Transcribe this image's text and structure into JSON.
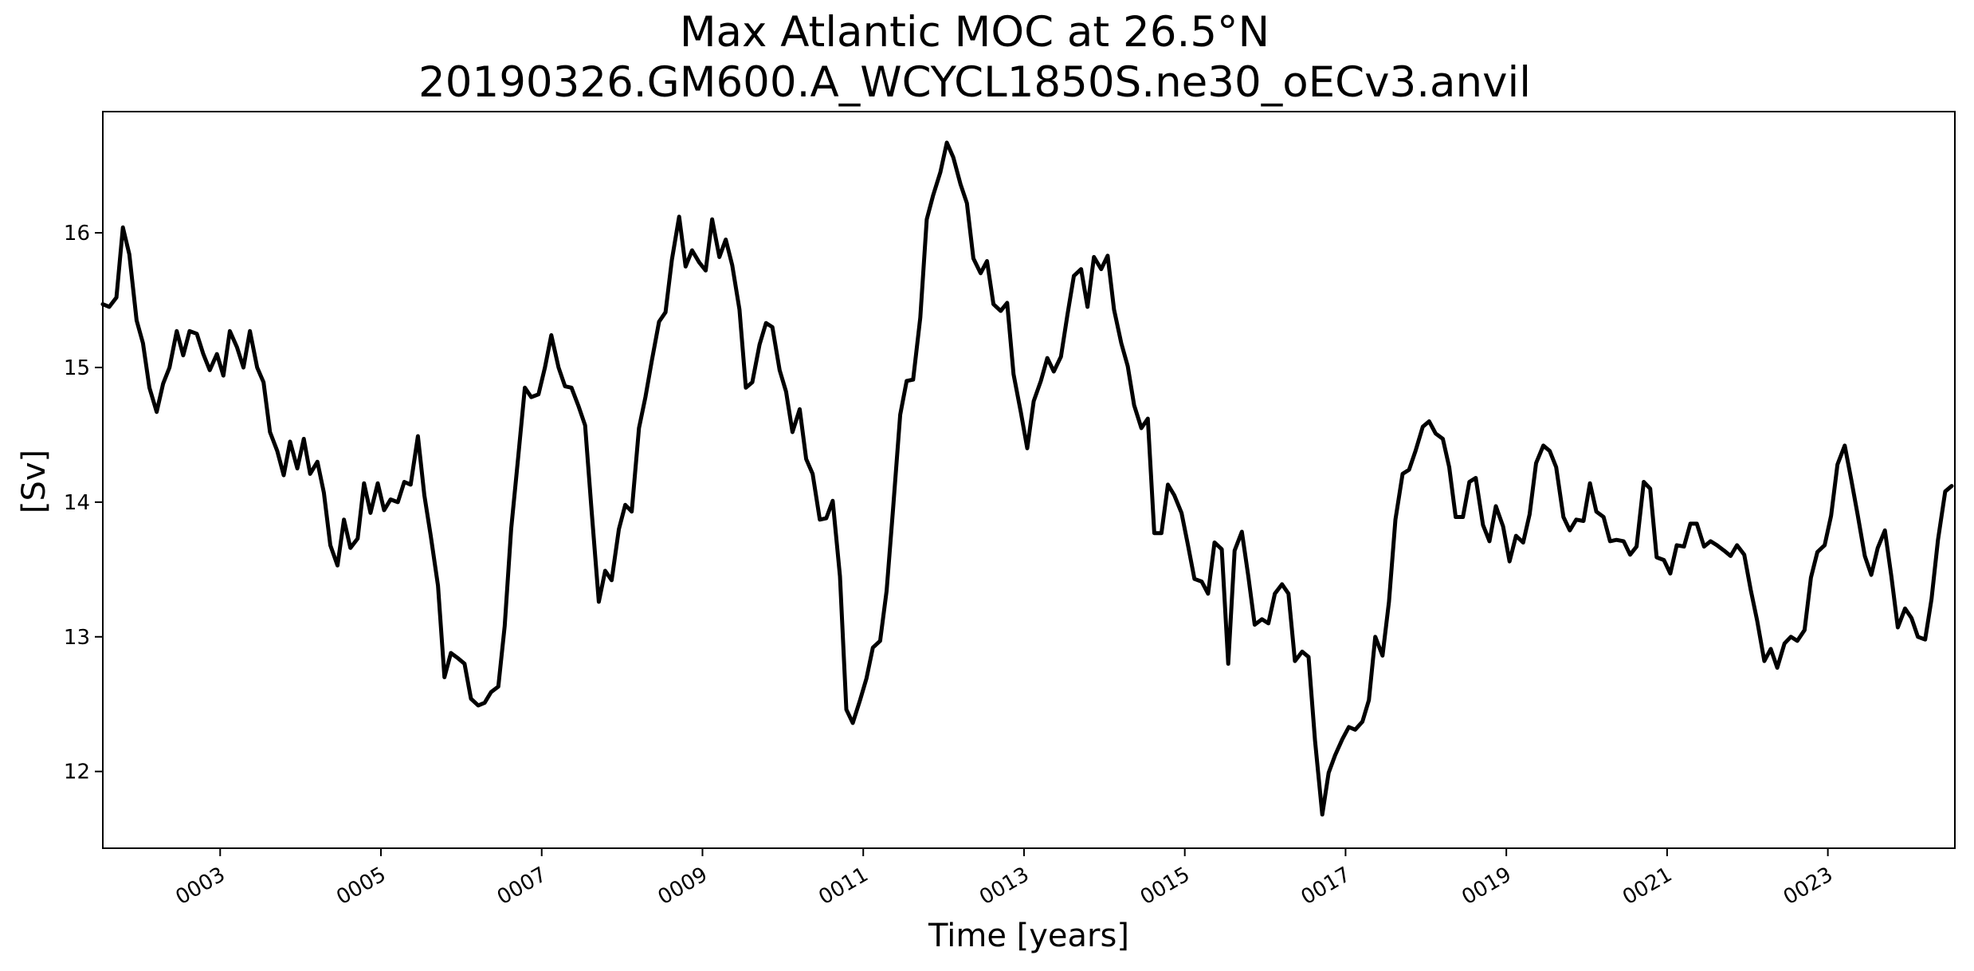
{
  "chart_data": {
    "type": "line",
    "title": "Max Atlantic MOC at 26.5°N",
    "subtitle": "20190326.GM600.A_WCYCL1850S.ne30_oECv3.anvil",
    "xlabel": "Time [years]",
    "ylabel": "[Sv]",
    "xlim": [
      1.54,
      24.58
    ],
    "ylim": [
      11.43,
      16.9
    ],
    "x_ticks": [
      {
        "value": 3,
        "label": "0003"
      },
      {
        "value": 5,
        "label": "0005"
      },
      {
        "value": 7,
        "label": "0007"
      },
      {
        "value": 9,
        "label": "0009"
      },
      {
        "value": 11,
        "label": "0011"
      },
      {
        "value": 13,
        "label": "0013"
      },
      {
        "value": 15,
        "label": "0015"
      },
      {
        "value": 17,
        "label": "0017"
      },
      {
        "value": 19,
        "label": "0019"
      },
      {
        "value": 21,
        "label": "0021"
      },
      {
        "value": 23,
        "label": "0023"
      }
    ],
    "y_ticks": [
      {
        "value": 12,
        "label": "12"
      },
      {
        "value": 13,
        "label": "13"
      },
      {
        "value": 14,
        "label": "14"
      },
      {
        "value": 15,
        "label": "15"
      },
      {
        "value": 16,
        "label": "16"
      }
    ],
    "grid": false,
    "line_color": "#000000",
    "series": [
      {
        "x": [
          1.54,
          1.62,
          1.71,
          1.79,
          1.87,
          1.96,
          2.04,
          2.12,
          2.21,
          2.29,
          2.37,
          2.46,
          2.54,
          2.62,
          2.71,
          2.79,
          2.87,
          2.96,
          3.04,
          3.12,
          3.21,
          3.29,
          3.37,
          3.46,
          3.54,
          3.62,
          3.71,
          3.79,
          3.87,
          3.96,
          4.04,
          4.12,
          4.21,
          4.29,
          4.37,
          4.46,
          4.54,
          4.62,
          4.71,
          4.79,
          4.87,
          4.96,
          5.04,
          5.12,
          5.21,
          5.29,
          5.37,
          5.46,
          5.54,
          5.62,
          5.71,
          5.79,
          5.87,
          5.96,
          6.04,
          6.12,
          6.21,
          6.29,
          6.37,
          6.46,
          6.54,
          6.62,
          6.71,
          6.79,
          6.87,
          6.96,
          7.04,
          7.12,
          7.21,
          7.29,
          7.37,
          7.46,
          7.54,
          7.62,
          7.71,
          7.79,
          7.87,
          7.96,
          8.04,
          8.12,
          8.21,
          8.29,
          8.37,
          8.46,
          8.54,
          8.62,
          8.71,
          8.79,
          8.87,
          8.96,
          9.04,
          9.12,
          9.21,
          9.29,
          9.37,
          9.46,
          9.54,
          9.62,
          9.71,
          9.79,
          9.87,
          9.96,
          10.04,
          10.12,
          10.21,
          10.29,
          10.37,
          10.46,
          10.54,
          10.62,
          10.71,
          10.79,
          10.87,
          10.96,
          11.04,
          11.12,
          11.21,
          11.29,
          11.37,
          11.46,
          11.54,
          11.62,
          11.71,
          11.79,
          11.87,
          11.96,
          12.04,
          12.12,
          12.21,
          12.29,
          12.37,
          12.46,
          12.54,
          12.62,
          12.71,
          12.79,
          12.87,
          12.96,
          13.04,
          13.12,
          13.21,
          13.29,
          13.37,
          13.46,
          13.54,
          13.62,
          13.71,
          13.79,
          13.87,
          13.96,
          14.04,
          14.12,
          14.21,
          14.29,
          14.37,
          14.46,
          14.54,
          14.62,
          14.71,
          14.79,
          14.87,
          14.96,
          15.04,
          15.12,
          15.21,
          15.29,
          15.37,
          15.46,
          15.54,
          15.62,
          15.71,
          15.79,
          15.87,
          15.96,
          16.04,
          16.12,
          16.21,
          16.29,
          16.37,
          16.46,
          16.54,
          16.62,
          16.71,
          16.79,
          16.87,
          16.96,
          17.04,
          17.12,
          17.21,
          17.29,
          17.37,
          17.46,
          17.54,
          17.62,
          17.71,
          17.79,
          17.87,
          17.96,
          18.04,
          18.12,
          18.21,
          18.29,
          18.37,
          18.46,
          18.54,
          18.62,
          18.71,
          18.79,
          18.87,
          18.96,
          19.04,
          19.12,
          19.21,
          19.29,
          19.37,
          19.46,
          19.54,
          19.62,
          19.71,
          19.79,
          19.87,
          19.96,
          20.04,
          20.12,
          20.21,
          20.29,
          20.37,
          20.46,
          20.54,
          20.62,
          20.71,
          20.79,
          20.87,
          20.96,
          21.04,
          21.12,
          21.21,
          21.29,
          21.37,
          21.46,
          21.54,
          21.62,
          21.71,
          21.79,
          21.87,
          21.96,
          22.04,
          22.12,
          22.21,
          22.29,
          22.37,
          22.46,
          22.54,
          22.62,
          22.71,
          22.79,
          22.87,
          22.96,
          23.04,
          23.12,
          23.21,
          23.29,
          23.37,
          23.46,
          23.54,
          23.62,
          23.71,
          23.79,
          23.87,
          23.96,
          24.04,
          24.12,
          24.21,
          24.29,
          24.37,
          24.46,
          24.54
        ],
        "y": [
          15.47,
          15.45,
          15.52,
          16.04,
          15.84,
          15.35,
          15.18,
          14.85,
          14.67,
          14.88,
          15.0,
          15.27,
          15.09,
          15.27,
          15.25,
          15.1,
          14.98,
          15.1,
          14.94,
          15.27,
          15.15,
          15.0,
          15.27,
          15.0,
          14.89,
          14.52,
          14.38,
          14.2,
          14.45,
          14.25,
          14.47,
          14.21,
          14.3,
          14.07,
          13.68,
          13.53,
          13.87,
          13.66,
          13.73,
          14.14,
          13.92,
          14.14,
          13.94,
          14.02,
          14.0,
          14.15,
          14.13,
          14.49,
          14.05,
          13.75,
          13.38,
          12.7,
          12.88,
          12.84,
          12.8,
          12.54,
          12.49,
          12.51,
          12.59,
          12.63,
          13.08,
          13.8,
          14.35,
          14.85,
          14.78,
          14.8,
          15.0,
          15.24,
          15.0,
          14.86,
          14.85,
          14.71,
          14.57,
          13.94,
          13.26,
          13.49,
          13.42,
          13.8,
          13.98,
          13.93,
          14.55,
          14.78,
          15.05,
          15.34,
          15.41,
          15.8,
          16.12,
          15.75,
          15.87,
          15.78,
          15.72,
          16.1,
          15.82,
          15.95,
          15.76,
          15.43,
          14.85,
          14.89,
          15.17,
          15.33,
          15.3,
          14.98,
          14.82,
          14.52,
          14.69,
          14.32,
          14.21,
          13.87,
          13.88,
          14.01,
          13.45,
          12.46,
          12.36,
          12.53,
          12.69,
          12.92,
          12.97,
          13.34,
          13.94,
          14.65,
          14.9,
          14.91,
          15.37,
          16.1,
          16.28,
          16.45,
          16.67,
          16.56,
          16.36,
          16.22,
          15.81,
          15.7,
          15.79,
          15.47,
          15.42,
          15.48,
          14.95,
          14.67,
          14.4,
          14.75,
          14.9,
          15.07,
          14.97,
          15.08,
          15.39,
          15.68,
          15.73,
          15.45,
          15.82,
          15.73,
          15.83,
          15.43,
          15.18,
          15.01,
          14.72,
          14.55,
          14.62,
          13.77,
          13.77,
          14.13,
          14.05,
          13.92,
          13.68,
          13.43,
          13.41,
          13.32,
          13.7,
          13.65,
          12.8,
          13.64,
          13.78,
          13.45,
          13.09,
          13.13,
          13.1,
          13.32,
          13.39,
          13.32,
          12.82,
          12.89,
          12.85,
          12.23,
          11.68,
          11.99,
          12.12,
          12.24,
          12.33,
          12.31,
          12.37,
          12.53,
          13.0,
          12.86,
          13.26,
          13.87,
          14.21,
          14.24,
          14.38,
          14.56,
          14.6,
          14.51,
          14.47,
          14.26,
          13.89,
          13.89,
          14.15,
          14.18,
          13.83,
          13.71,
          13.97,
          13.82,
          13.56,
          13.75,
          13.7,
          13.91,
          14.29,
          14.42,
          14.38,
          14.26,
          13.89,
          13.79,
          13.87,
          13.86,
          14.14,
          13.93,
          13.89,
          13.71,
          13.72,
          13.71,
          13.61,
          13.67,
          14.15,
          14.1,
          13.59,
          13.57,
          13.47,
          13.68,
          13.67,
          13.84,
          13.84,
          13.67,
          13.71,
          13.68,
          13.64,
          13.6,
          13.68,
          13.61,
          13.35,
          13.12,
          12.82,
          12.91,
          12.77,
          12.95,
          13.0,
          12.97,
          13.05,
          13.44,
          13.63,
          13.68,
          13.9,
          14.28,
          14.42,
          14.17,
          13.91,
          13.6,
          13.46,
          13.66,
          13.79,
          13.45,
          13.07,
          13.21,
          13.14,
          13.0,
          12.98,
          13.28,
          13.72,
          14.08,
          14.12
        ]
      }
    ]
  }
}
